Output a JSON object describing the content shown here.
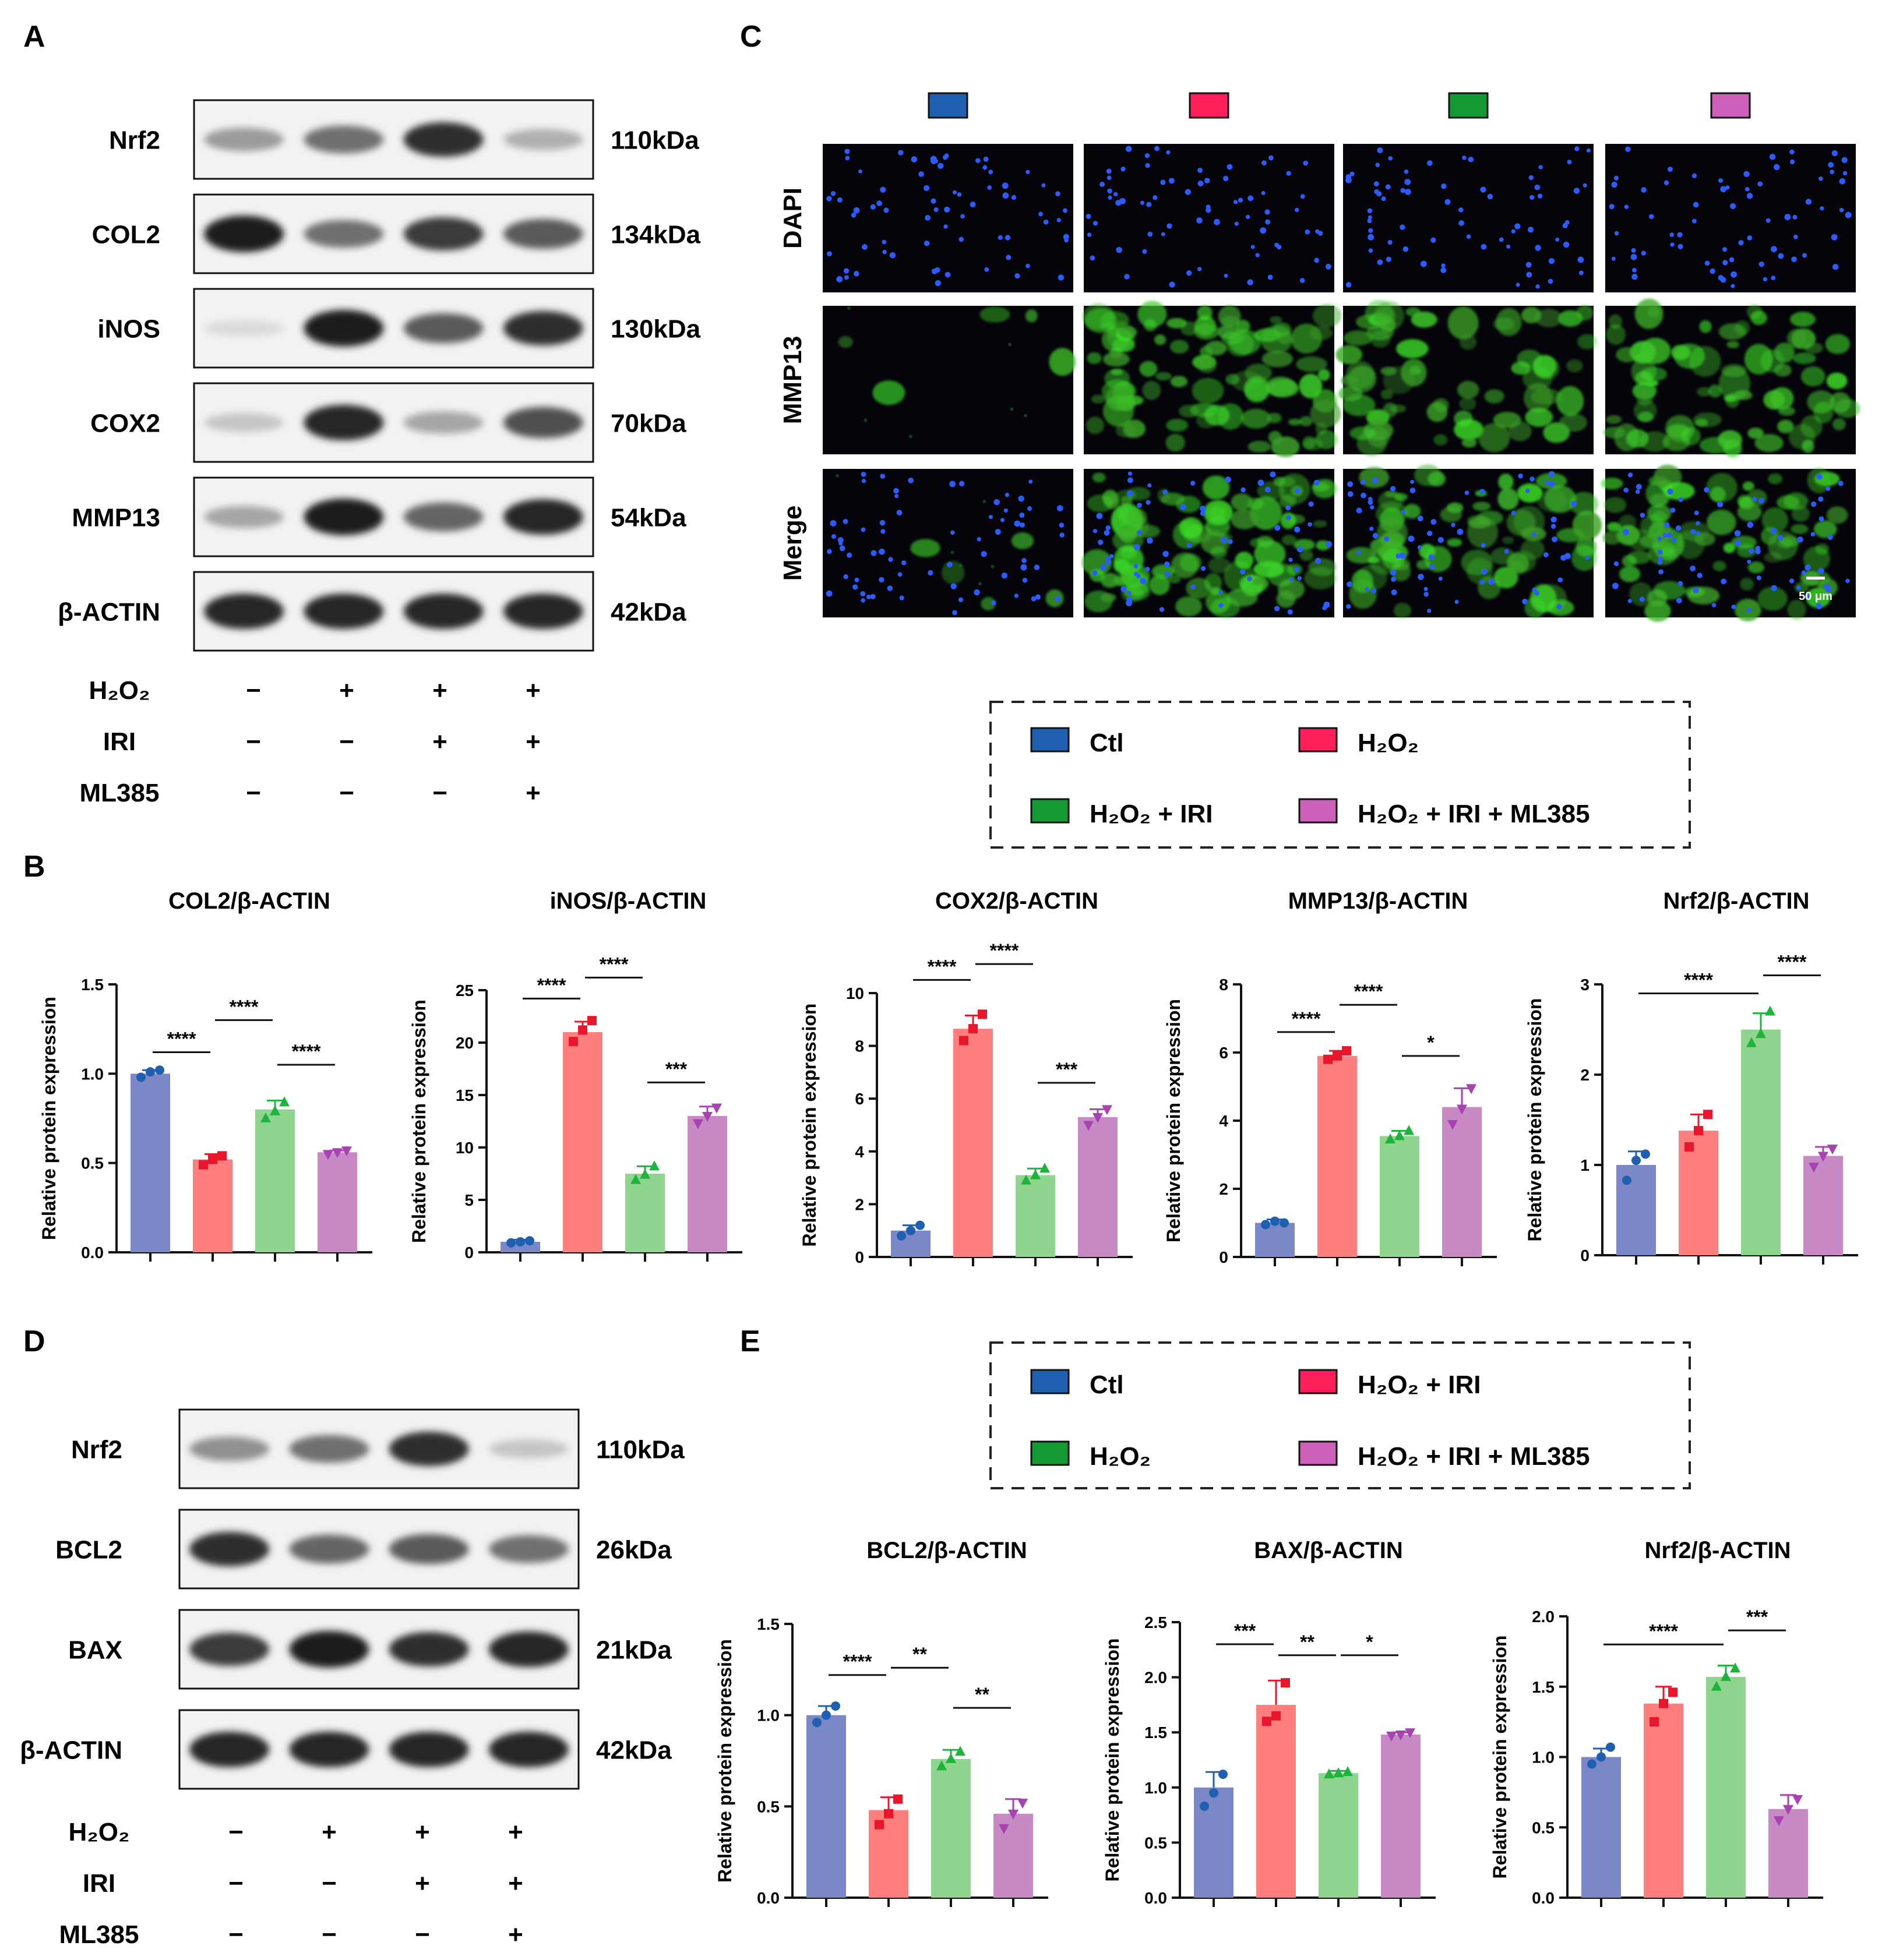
{
  "panels": {
    "A": "A",
    "B": "B",
    "C": "C",
    "D": "D",
    "E": "E"
  },
  "colors": {
    "ctl": "#7b88c7",
    "h2o2": "#ff7f7f",
    "iri": "#8fd48f",
    "ml": "#c78ac4",
    "ctl_dot": "#1f5fb0",
    "h2o2_dot": "#e8152b",
    "iri_dot": "#1eb33a",
    "ml_dot": "#a842b0",
    "leg_ctl": "#1f5fb0",
    "leg_red": "#ff1f5a",
    "leg_green": "#139a32",
    "leg_pink": "#cc5fb8"
  },
  "blotA": {
    "bands": [
      {
        "label": "Nrf2",
        "kda": "110kDa",
        "intens": [
          0.35,
          0.55,
          0.85,
          0.25
        ]
      },
      {
        "label": "COL2",
        "kda": "134kDa",
        "intens": [
          0.95,
          0.55,
          0.8,
          0.65
        ]
      },
      {
        "label": "iNOS",
        "kda": "130kDa",
        "intens": [
          0.05,
          0.95,
          0.65,
          0.85
        ]
      },
      {
        "label": "COX2",
        "kda": "70kDa",
        "intens": [
          0.15,
          0.9,
          0.3,
          0.7
        ]
      },
      {
        "label": "MMP13",
        "kda": "54kDa",
        "intens": [
          0.3,
          0.95,
          0.6,
          0.9
        ]
      },
      {
        "label": "β-ACTIN",
        "kda": "42kDa",
        "intens": [
          0.9,
          0.9,
          0.9,
          0.9
        ]
      }
    ],
    "conditions": [
      {
        "label": "H₂O₂",
        "marks": [
          "−",
          "+",
          "+",
          "+"
        ]
      },
      {
        "label": "IRI",
        "marks": [
          "−",
          "−",
          "+",
          "+"
        ]
      },
      {
        "label": "ML385",
        "marks": [
          "−",
          "−",
          "−",
          "+"
        ]
      }
    ]
  },
  "blotD": {
    "bands": [
      {
        "label": "Nrf2",
        "kda": "110kDa",
        "intens": [
          0.4,
          0.55,
          0.85,
          0.15
        ]
      },
      {
        "label": "BCL2",
        "kda": "26kDa",
        "intens": [
          0.85,
          0.6,
          0.65,
          0.55
        ]
      },
      {
        "label": "BAX",
        "kda": "21kDa",
        "intens": [
          0.8,
          0.95,
          0.85,
          0.9
        ]
      },
      {
        "label": "β-ACTIN",
        "kda": "42kDa",
        "intens": [
          0.9,
          0.9,
          0.9,
          0.9
        ]
      }
    ],
    "conditions": [
      {
        "label": "H₂O₂",
        "marks": [
          "−",
          "+",
          "+",
          "+"
        ]
      },
      {
        "label": "IRI",
        "marks": [
          "−",
          "−",
          "+",
          "+"
        ]
      },
      {
        "label": "ML385",
        "marks": [
          "−",
          "−",
          "−",
          "+"
        ]
      }
    ]
  },
  "ifPanel": {
    "rows": [
      "DAPI",
      "MMP13",
      "Merge"
    ],
    "scalebar": "50 μm"
  },
  "legendC": [
    "Ctl",
    "H₂O₂",
    "H₂O₂ + IRI",
    "H₂O₂ + IRI + ML385"
  ],
  "legendE": [
    "Ctl",
    "H₂O₂ + IRI",
    "H₂O₂",
    "H₂O₂ + IRI + ML385"
  ],
  "chart_data": [
    {
      "type": "bar",
      "title": "COL2/β-ACTIN",
      "ylabel": "Relative protein expression",
      "ylim": [
        0,
        1.5
      ],
      "yticks": [
        "0.0",
        "0.5",
        "1.0",
        "1.5"
      ],
      "values": [
        1.0,
        0.52,
        0.8,
        0.56
      ],
      "points": [
        [
          0.98,
          1.01,
          1.02
        ],
        [
          0.49,
          0.52,
          0.54
        ],
        [
          0.75,
          0.79,
          0.84
        ],
        [
          0.55,
          0.56,
          0.57
        ]
      ],
      "err": [
        0.02,
        0.03,
        0.05,
        0.01
      ],
      "sig": [
        {
          "a": 0,
          "b": 1,
          "t": "****",
          "y": 1.12
        },
        {
          "a": 1,
          "b": 2,
          "t": "****",
          "y": 1.3
        },
        {
          "a": 2,
          "b": 3,
          "t": "****",
          "y": 1.05
        }
      ]
    },
    {
      "type": "bar",
      "title": "iNOS/β-ACTIN",
      "ylabel": "Relative protein expression",
      "ylim": [
        0,
        25
      ],
      "yticks": [
        "0",
        "5",
        "10",
        "15",
        "20",
        "25"
      ],
      "values": [
        1.0,
        21.0,
        7.5,
        13.0
      ],
      "points": [
        [
          0.9,
          1.0,
          1.1
        ],
        [
          20.1,
          21.2,
          22.1
        ],
        [
          6.9,
          7.4,
          8.2
        ],
        [
          12.3,
          13.0,
          13.8
        ]
      ],
      "err": [
        0.2,
        1.0,
        0.7,
        0.9
      ],
      "sig": [
        {
          "a": 0,
          "b": 1,
          "t": "****",
          "y": 24.2
        },
        {
          "a": 1,
          "b": 2,
          "t": "****",
          "y": 26.2
        },
        {
          "a": 2,
          "b": 3,
          "t": "***",
          "y": 16.2
        }
      ]
    },
    {
      "type": "bar",
      "title": "COX2/β-ACTIN",
      "ylabel": "Relative protein expression",
      "ylim": [
        0,
        10
      ],
      "yticks": [
        "0",
        "2",
        "4",
        "6",
        "8",
        "10"
      ],
      "values": [
        1.0,
        8.65,
        3.1,
        5.3
      ],
      "points": [
        [
          0.8,
          1.0,
          1.2
        ],
        [
          8.2,
          8.65,
          9.2
        ],
        [
          2.9,
          3.1,
          3.35
        ],
        [
          5.0,
          5.3,
          5.6
        ]
      ],
      "err": [
        0.2,
        0.5,
        0.25,
        0.3
      ],
      "sig": [
        {
          "a": 0,
          "b": 1,
          "t": "****",
          "y": 10.5
        },
        {
          "a": 1,
          "b": 2,
          "t": "****",
          "y": 11.1
        },
        {
          "a": 2,
          "b": 3,
          "t": "***",
          "y": 6.6
        }
      ]
    },
    {
      "type": "bar",
      "title": "MMP13/β-ACTIN",
      "ylabel": "Relative protein expression",
      "ylim": [
        0,
        8
      ],
      "yticks": [
        "0",
        "2",
        "4",
        "6",
        "8"
      ],
      "values": [
        1.0,
        5.9,
        3.55,
        4.4
      ],
      "points": [
        [
          0.95,
          1.05,
          1.0
        ],
        [
          5.8,
          5.9,
          6.05
        ],
        [
          3.45,
          3.55,
          3.7
        ],
        [
          3.9,
          4.35,
          4.95
        ]
      ],
      "err": [
        0.1,
        0.15,
        0.15,
        0.55
      ],
      "sig": [
        {
          "a": 0,
          "b": 1,
          "t": "****",
          "y": 6.6
        },
        {
          "a": 1,
          "b": 2,
          "t": "****",
          "y": 7.4
        },
        {
          "a": 2,
          "b": 3,
          "t": "*",
          "y": 5.9
        }
      ]
    },
    {
      "type": "bar",
      "title": "Nrf2/β-ACTIN",
      "ylabel": "Relative protein expression",
      "ylim": [
        0,
        3
      ],
      "yticks": [
        "0",
        "1",
        "2",
        "3"
      ],
      "values": [
        1.0,
        1.38,
        2.5,
        1.1
      ],
      "points": [
        [
          0.83,
          1.05,
          1.12
        ],
        [
          1.2,
          1.38,
          1.56
        ],
        [
          2.35,
          2.45,
          2.7
        ],
        [
          0.98,
          1.1,
          1.18
        ]
      ],
      "err": [
        0.15,
        0.18,
        0.18,
        0.1
      ],
      "sig": [
        {
          "a": 0,
          "b": 2,
          "t": "****",
          "y": 2.9
        },
        {
          "a": 2,
          "b": 3,
          "t": "****",
          "y": 3.1
        }
      ]
    },
    {
      "type": "bar",
      "title": "BCL2/β-ACTIN",
      "ylabel": "Relative protein expression",
      "ylim": [
        0,
        1.5
      ],
      "yticks": [
        "0.0",
        "0.5",
        "1.0",
        "1.5"
      ],
      "values": [
        1.0,
        0.48,
        0.76,
        0.46
      ],
      "points": [
        [
          0.96,
          1.0,
          1.05
        ],
        [
          0.4,
          0.46,
          0.54
        ],
        [
          0.72,
          0.76,
          0.8
        ],
        [
          0.38,
          0.46,
          0.52
        ]
      ],
      "err": [
        0.05,
        0.07,
        0.05,
        0.08
      ],
      "sig": [
        {
          "a": 0,
          "b": 1,
          "t": "****",
          "y": 1.22
        },
        {
          "a": 1,
          "b": 2,
          "t": "**",
          "y": 1.26
        },
        {
          "a": 2,
          "b": 3,
          "t": "**",
          "y": 1.04
        }
      ]
    },
    {
      "type": "bar",
      "title": "BAX/β-ACTIN",
      "ylabel": "Relative protein expression",
      "ylim": [
        0,
        2.5
      ],
      "yticks": [
        "0.0",
        "0.5",
        "1.0",
        "1.5",
        "2.0",
        "2.5"
      ],
      "values": [
        1.0,
        1.75,
        1.13,
        1.48
      ],
      "points": [
        [
          0.83,
          0.95,
          1.12
        ],
        [
          1.6,
          1.65,
          1.95
        ],
        [
          1.12,
          1.13,
          1.14
        ],
        [
          1.47,
          1.48,
          1.5
        ]
      ],
      "err": [
        0.14,
        0.22,
        0.02,
        0.02
      ],
      "sig": [
        {
          "a": 0,
          "b": 1,
          "t": "***",
          "y": 2.3
        },
        {
          "a": 1,
          "b": 2,
          "t": "**",
          "y": 2.2
        },
        {
          "a": 2,
          "b": 3,
          "t": "*",
          "y": 2.2
        }
      ]
    },
    {
      "type": "bar",
      "title": "Nrf2/β-ACTIN",
      "ylabel": "Relative protein expression",
      "ylim": [
        0,
        2.0
      ],
      "yticks": [
        "0.0",
        "0.5",
        "1.0",
        "1.5",
        "2.0"
      ],
      "values": [
        1.0,
        1.38,
        1.57,
        0.63
      ],
      "points": [
        [
          0.95,
          1.0,
          1.07
        ],
        [
          1.25,
          1.38,
          1.46
        ],
        [
          1.5,
          1.57,
          1.63
        ],
        [
          0.55,
          0.63,
          0.7
        ]
      ],
      "err": [
        0.06,
        0.12,
        0.08,
        0.1
      ],
      "sig": [
        {
          "a": 0,
          "b": 2,
          "t": "****",
          "y": 1.8
        },
        {
          "a": 2,
          "b": 3,
          "t": "***",
          "y": 1.9
        }
      ]
    }
  ]
}
